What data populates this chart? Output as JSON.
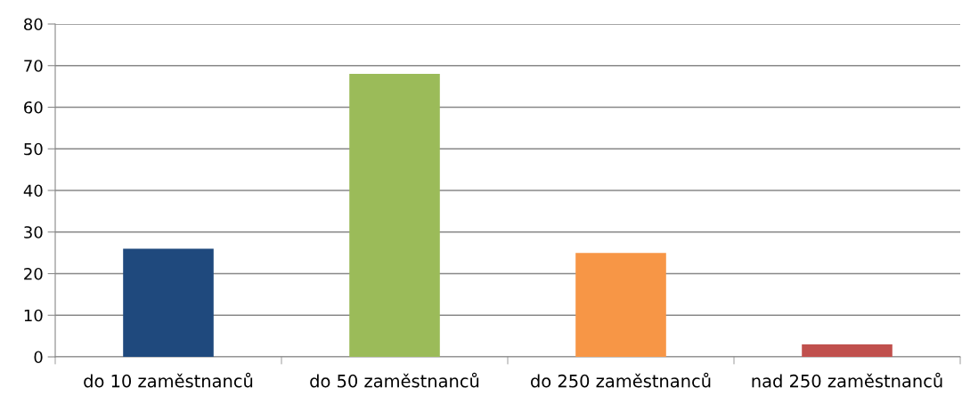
{
  "chart_data": {
    "type": "bar",
    "categories": [
      "do 10 zaměstnanců",
      "do 50 zaměstnanců",
      "do 250 zaměstnanců",
      "nad 250 zaměstnanců"
    ],
    "values": [
      26,
      68,
      25,
      3
    ],
    "colors": [
      "#1f497d",
      "#9bbb59",
      "#f79646",
      "#c0504d"
    ],
    "ylim": [
      0,
      80
    ],
    "yticks": [
      0,
      10,
      20,
      30,
      40,
      50,
      60,
      70,
      80
    ],
    "grid": "y"
  }
}
